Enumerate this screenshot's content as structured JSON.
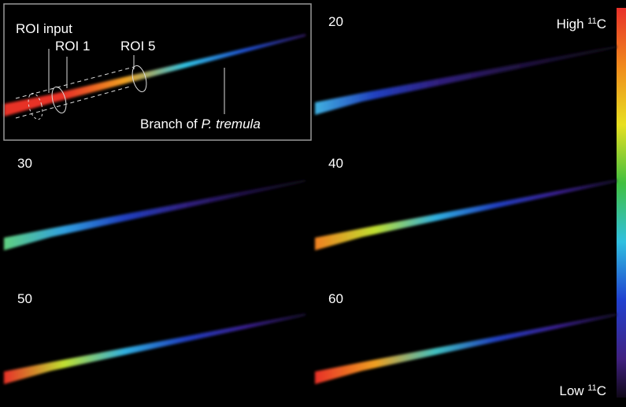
{
  "panels": [
    {
      "annotations": {
        "roi_input": "ROI input",
        "roi_1": "ROI 1",
        "roi_5": "ROI 5",
        "branch": {
          "prefix": "Branch of ",
          "italic": "P. tremula"
        }
      }
    },
    {
      "label": "20"
    },
    {
      "label": "30"
    },
    {
      "label": "40"
    },
    {
      "label": "50"
    },
    {
      "label": "60"
    }
  ],
  "colorbar": {
    "high": {
      "prefix": "High ",
      "sup": "11",
      "suffix": "C"
    },
    "low": {
      "prefix": "Low ",
      "sup": "11",
      "suffix": "C"
    }
  }
}
